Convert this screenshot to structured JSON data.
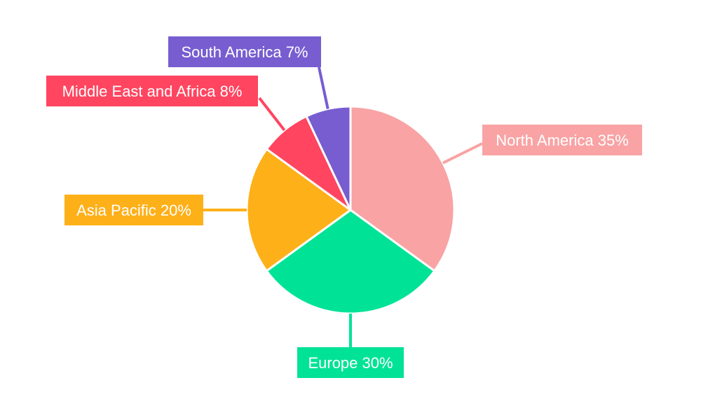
{
  "chart_data": {
    "type": "pie",
    "title": "",
    "start_angle": "top, clockwise",
    "categories": [
      "North America",
      "Europe",
      "Asia Pacific",
      "Middle East and Africa",
      "South America"
    ],
    "values": [
      35,
      30,
      20,
      8,
      7
    ],
    "labels": [
      "North America 35%",
      "Europe 30%",
      "Asia Pacific 20%",
      "Middle East and Africa 8%",
      "South America 7%"
    ],
    "colors": [
      "#f9a3a4",
      "#00e396",
      "#feb019",
      "#ff4560",
      "#775dd0"
    ],
    "legend": "none"
  }
}
